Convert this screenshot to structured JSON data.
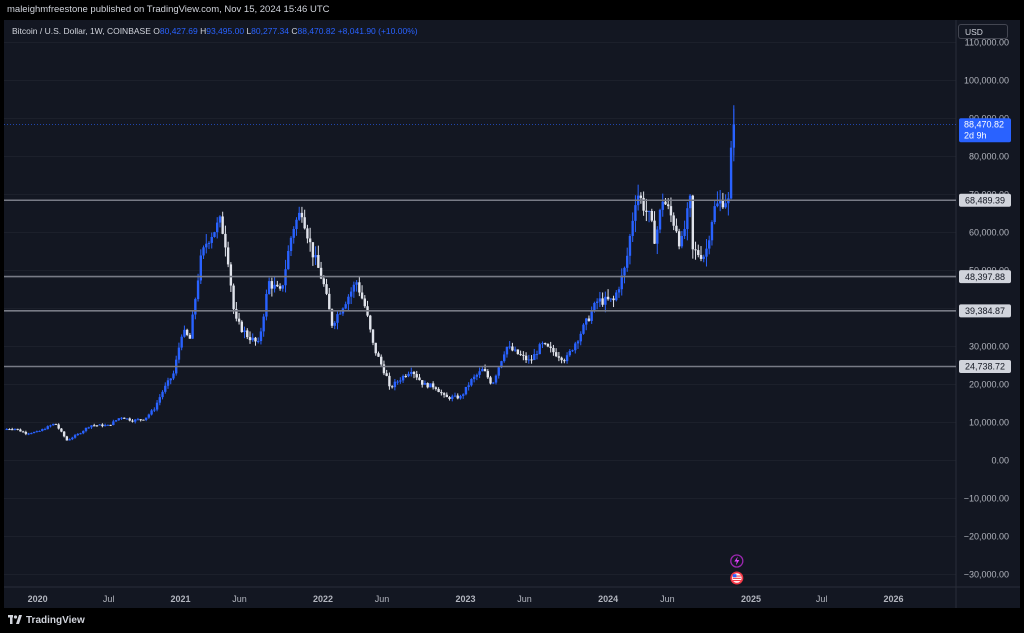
{
  "header": {
    "publisher_line": "maleighmfreestone published on TradingView.com, Nov 15, 2024 15:46 UTC"
  },
  "legend": {
    "symbol": "Bitcoin / U.S. Dollar, 1W, COINBASE",
    "o_label": "O",
    "o_value": "80,427.69",
    "h_label": "H",
    "h_value": "93,495.00",
    "l_label": "L",
    "l_value": "80,277.34",
    "c_label": "C",
    "c_value": "88,470.82",
    "change": "+8,041.90 (+10.00%)"
  },
  "currency_button": "USD",
  "footer": {
    "brand": "TradingView"
  },
  "icons": [
    "lightning-icon",
    "us-flag-icon",
    "tradingview-logo-icon"
  ],
  "colors": {
    "up": "#2962ff",
    "down": "#e0e3eb",
    "background": "#131722",
    "level_line": "#787b86"
  },
  "chart_data": {
    "type": "candlestick",
    "symbol": "Bitcoin / U.S. Dollar",
    "interval": "1W",
    "ylim": [
      -35000,
      115000
    ],
    "y_ticks": [
      "110,000.00",
      "100,000.00",
      "90,000.00",
      "80,000.00",
      "70,000.00",
      "60,000.00",
      "50,000.00",
      "40,000.00",
      "30,000.00",
      "20,000.00",
      "10,000.00",
      "0.00",
      "−10,000.00",
      "−20,000.00",
      "−30,000.00"
    ],
    "x_ticks": [
      "2020",
      "Jul",
      "2021",
      "Jun",
      "2022",
      "Jun",
      "2023",
      "Jun",
      "2024",
      "Jun",
      "2025",
      "Jul",
      "2026"
    ],
    "x_tick_dates": [
      "2020-01-01",
      "2020-07-01",
      "2021-01-01",
      "2021-06-01",
      "2022-01-01",
      "2022-06-01",
      "2023-01-01",
      "2023-06-01",
      "2024-01-01",
      "2024-06-01",
      "2025-01-01",
      "2025-07-01",
      "2026-01-01"
    ],
    "x_range": [
      "2019-10-07",
      "2026-06-10"
    ],
    "horizontal_levels": [
      {
        "value": 68489.39,
        "label": "68,489.39"
      },
      {
        "value": 48397.88,
        "label": "48,397.88"
      },
      {
        "value": 39384.87,
        "label": "39,384.87"
      },
      {
        "value": 24738.72,
        "label": "24,738.72"
      }
    ],
    "last_price": {
      "value": 88470.82,
      "label": "88,470.82",
      "countdown": "2d 9h"
    },
    "close_series": [
      [
        "2019-10-07",
        8200
      ],
      [
        "2019-11-01",
        8500
      ],
      [
        "2019-12-01",
        7200
      ],
      [
        "2020-01-01",
        7500
      ],
      [
        "2020-02-15",
        9800
      ],
      [
        "2020-03-16",
        5300
      ],
      [
        "2020-04-15",
        7000
      ],
      [
        "2020-05-15",
        9300
      ],
      [
        "2020-07-01",
        9200
      ],
      [
        "2020-08-01",
        11500
      ],
      [
        "2020-09-01",
        10500
      ],
      [
        "2020-10-01",
        11000
      ],
      [
        "2020-10-25",
        13500
      ],
      [
        "2020-11-15",
        18000
      ],
      [
        "2020-12-15",
        23000
      ],
      [
        "2021-01-05",
        34000
      ],
      [
        "2021-01-25",
        32000
      ],
      [
        "2021-02-20",
        52000
      ],
      [
        "2021-03-10",
        58000
      ],
      [
        "2021-04-14",
        63000
      ],
      [
        "2021-05-01",
        55000
      ],
      [
        "2021-05-20",
        37000
      ],
      [
        "2021-06-20",
        33000
      ],
      [
        "2021-07-20",
        30500
      ],
      [
        "2021-08-15",
        47000
      ],
      [
        "2021-09-15",
        44000
      ],
      [
        "2021-10-15",
        61000
      ],
      [
        "2021-11-08",
        66000
      ],
      [
        "2021-12-01",
        56000
      ],
      [
        "2022-01-01",
        47000
      ],
      [
        "2022-01-24",
        36000
      ],
      [
        "2022-03-28",
        47000
      ],
      [
        "2022-04-20",
        40000
      ],
      [
        "2022-05-10",
        30000
      ],
      [
        "2022-06-13",
        22000
      ],
      [
        "2022-06-20",
        19000
      ],
      [
        "2022-08-15",
        24000
      ],
      [
        "2022-09-15",
        20000
      ],
      [
        "2022-10-15",
        19500
      ],
      [
        "2022-11-10",
        16500
      ],
      [
        "2022-12-20",
        16700
      ],
      [
        "2023-01-15",
        21000
      ],
      [
        "2023-02-15",
        24000
      ],
      [
        "2023-03-10",
        20000
      ],
      [
        "2023-04-15",
        30000
      ],
      [
        "2023-06-15",
        26000
      ],
      [
        "2023-07-15",
        30500
      ],
      [
        "2023-09-15",
        26500
      ],
      [
        "2023-10-25",
        34000
      ],
      [
        "2023-12-05",
        42000
      ],
      [
        "2024-01-15",
        42000
      ],
      [
        "2024-02-15",
        51000
      ],
      [
        "2024-03-14",
        71000
      ],
      [
        "2024-04-15",
        64000
      ],
      [
        "2024-05-01",
        58000
      ],
      [
        "2024-05-20",
        69000
      ],
      [
        "2024-06-25",
        61000
      ],
      [
        "2024-07-05",
        56000
      ],
      [
        "2024-07-29",
        68000
      ],
      [
        "2024-08-05",
        55000
      ],
      [
        "2024-09-06",
        54000
      ],
      [
        "2024-09-27",
        66000
      ],
      [
        "2024-10-25",
        69000
      ],
      [
        "2024-11-04",
        68000
      ],
      [
        "2024-11-11",
        80500
      ],
      [
        "2024-11-18",
        88470.82
      ]
    ]
  }
}
